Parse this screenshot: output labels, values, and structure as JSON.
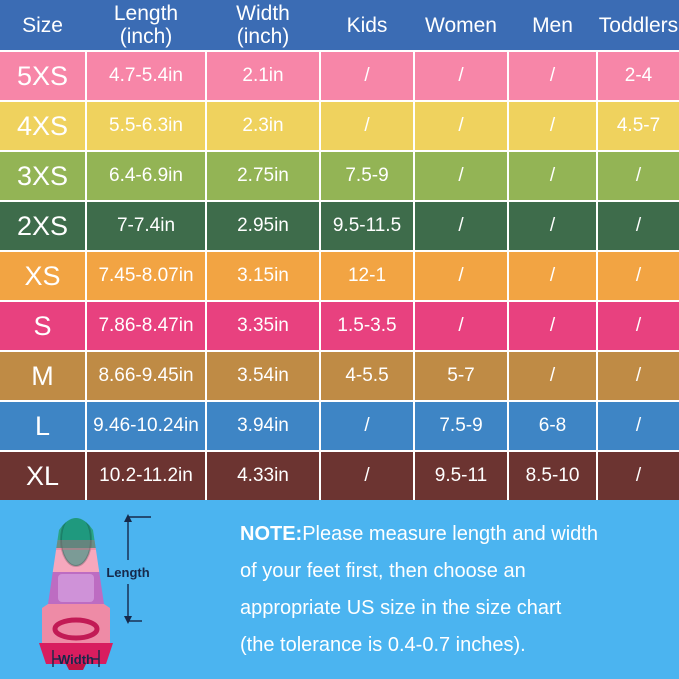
{
  "table": {
    "headers": [
      {
        "line1": "Size",
        "line2": ""
      },
      {
        "line1": "Length",
        "line2": "(inch)"
      },
      {
        "line1": "Width",
        "line2": "(inch)"
      },
      {
        "line1": "Kids",
        "line2": ""
      },
      {
        "line1": "Women",
        "line2": ""
      },
      {
        "line1": "Men",
        "line2": ""
      },
      {
        "line1": "Toddlers",
        "line2": ""
      }
    ],
    "rows": [
      {
        "color": "#f786a8",
        "cells": [
          "5XS",
          "4.7-5.4in",
          "2.1in",
          "/",
          "/",
          "/",
          "2-4"
        ]
      },
      {
        "color": "#efd25e",
        "cells": [
          "4XS",
          "5.5-6.3in",
          "2.3in",
          "/",
          "/",
          "/",
          "4.5-7"
        ]
      },
      {
        "color": "#93b455",
        "cells": [
          "3XS",
          "6.4-6.9in",
          "2.75in",
          "7.5-9",
          "/",
          "/",
          "/"
        ]
      },
      {
        "color": "#3e6c4b",
        "cells": [
          "2XS",
          "7-7.4in",
          "2.95in",
          "9.5-11.5",
          "/",
          "/",
          "/"
        ]
      },
      {
        "color": "#f2a443",
        "cells": [
          "XS",
          "7.45-8.07in",
          "3.15in",
          "12-1",
          "/",
          "/",
          "/"
        ]
      },
      {
        "color": "#e8417f",
        "cells": [
          "S",
          "7.86-8.47in",
          "3.35in",
          "1.5-3.5",
          "/",
          "/",
          "/"
        ]
      },
      {
        "color": "#bf8b45",
        "cells": [
          "M",
          "8.66-9.45in",
          "3.54in",
          "4-5.5",
          "5-7",
          "/",
          "/"
        ]
      },
      {
        "color": "#3e85c5",
        "cells": [
          "L",
          "9.46-10.24in",
          "3.94in",
          "/",
          "7.5-9",
          "6-8",
          "/"
        ]
      },
      {
        "color": "#6c3431",
        "cells": [
          "XL",
          "10.2-11.2in",
          "4.33in",
          "/",
          "9.5-11",
          "8.5-10",
          "/"
        ]
      }
    ]
  },
  "note": {
    "label": "NOTE:",
    "lines": [
      "Please measure length and width",
      "of your feet first, then choose an",
      "appropriate US size in the size chart",
      "(the tolerance is 0.4-0.7 inches)."
    ]
  },
  "fin": {
    "length_label": "Length",
    "width_label": "Width"
  },
  "colors": {
    "header_bg": "#3b6cb4",
    "note_bg": "#4bb4f0",
    "grid_line": "#ffffff",
    "text": "#ffffff",
    "annotation": "#16294a"
  },
  "chart_data": {
    "type": "table",
    "title": "Fin size chart",
    "columns": [
      "Size",
      "Length (inch)",
      "Width (inch)",
      "Kids",
      "Women",
      "Men",
      "Toddlers"
    ],
    "rows": [
      [
        "5XS",
        "4.7-5.4in",
        "2.1in",
        "/",
        "/",
        "/",
        "2-4"
      ],
      [
        "4XS",
        "5.5-6.3in",
        "2.3in",
        "/",
        "/",
        "/",
        "4.5-7"
      ],
      [
        "3XS",
        "6.4-6.9in",
        "2.75in",
        "7.5-9",
        "/",
        "/",
        "/"
      ],
      [
        "2XS",
        "7-7.4in",
        "2.95in",
        "9.5-11.5",
        "/",
        "/",
        "/"
      ],
      [
        "XS",
        "7.45-8.07in",
        "3.15in",
        "12-1",
        "/",
        "/",
        "/"
      ],
      [
        "S",
        "7.86-8.47in",
        "3.35in",
        "1.5-3.5",
        "/",
        "/",
        "/"
      ],
      [
        "M",
        "8.66-9.45in",
        "3.54in",
        "4-5.5",
        "5-7",
        "/",
        "/"
      ],
      [
        "L",
        "9.46-10.24in",
        "3.94in",
        "/",
        "7.5-9",
        "6-8",
        "/"
      ],
      [
        "XL",
        "10.2-11.2in",
        "4.33in",
        "/",
        "9.5-11",
        "8.5-10",
        "/"
      ]
    ],
    "row_colors": [
      "#f786a8",
      "#efd25e",
      "#93b455",
      "#3e6c4b",
      "#f2a443",
      "#e8417f",
      "#bf8b45",
      "#3e85c5",
      "#6c3431"
    ],
    "note": "NOTE:Please measure length and width of your feet first, then choose an appropriate US size in the size chart (the tolerance is 0.4-0.7 inches)."
  }
}
